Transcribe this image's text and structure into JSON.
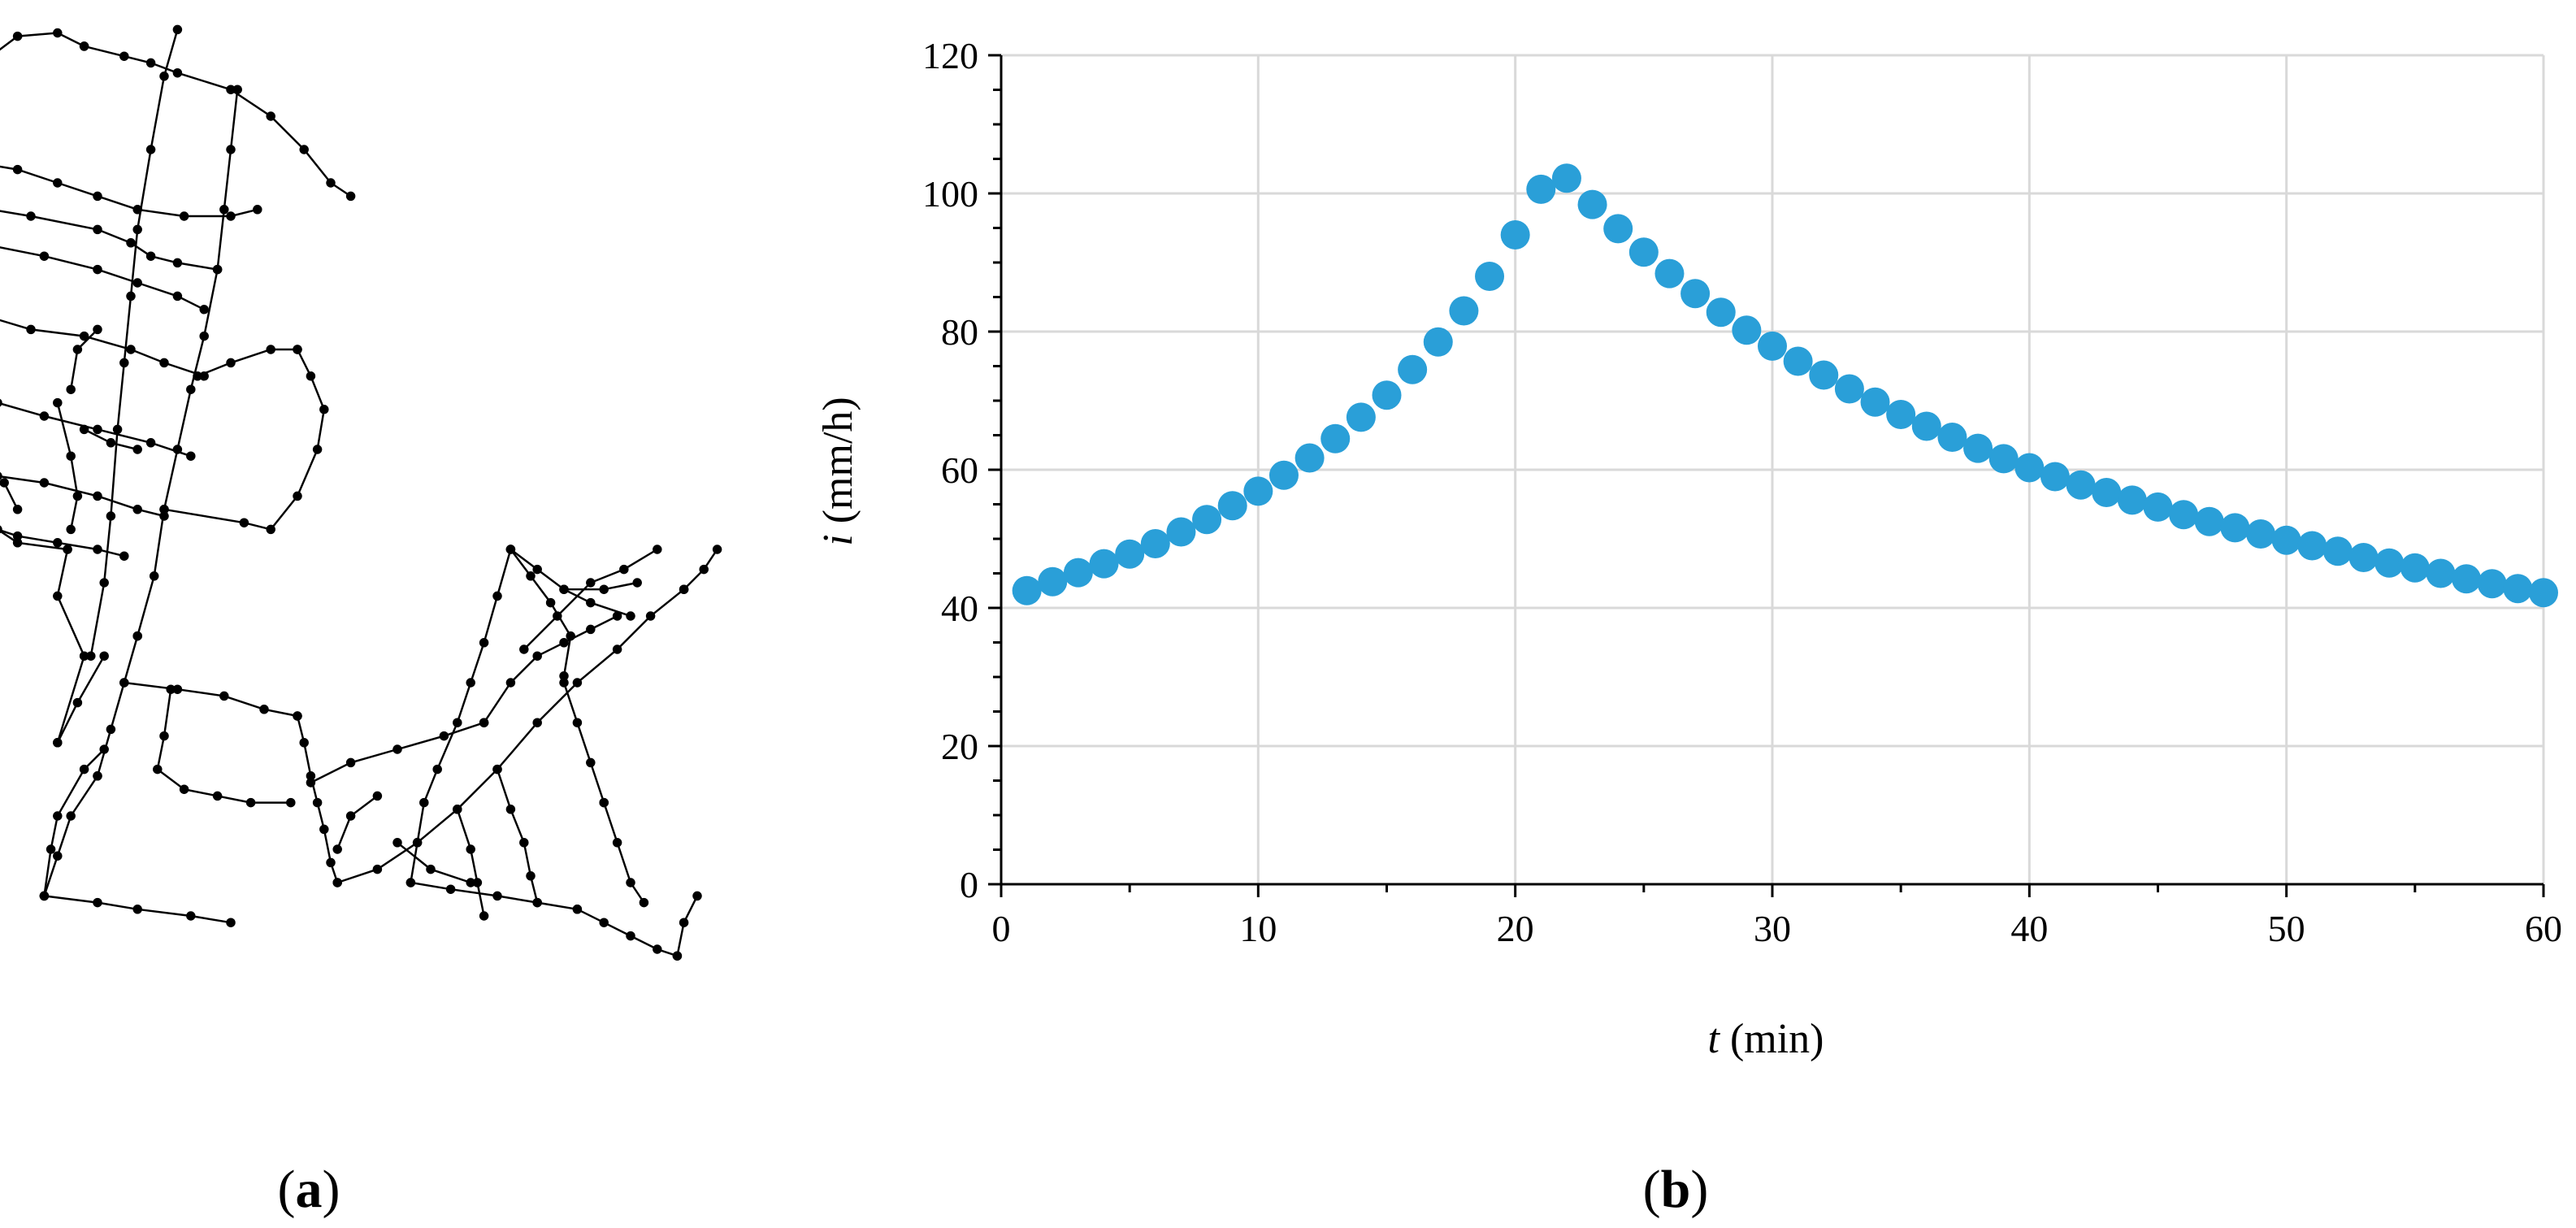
{
  "panels": {
    "a": {
      "label": "a"
    },
    "b": {
      "label": "b"
    }
  },
  "network": {
    "node_color": "#000000",
    "polylines": [
      [
        [
          120,
          20
        ],
        [
          100,
          90
        ],
        [
          80,
          200
        ],
        [
          60,
          320
        ],
        [
          50,
          420
        ],
        [
          40,
          520
        ],
        [
          30,
          620
        ],
        [
          20,
          750
        ],
        [
          10,
          850
        ],
        [
          -10,
          960
        ]
      ],
      [
        [
          10,
          960
        ],
        [
          -30,
          1030
        ],
        [
          -60,
          1090
        ]
      ],
      [
        [
          -60,
          1090
        ],
        [
          -20,
          960
        ],
        [
          -60,
          870
        ],
        [
          -45,
          800
        ]
      ],
      [
        [
          -45,
          800
        ],
        [
          -120,
          790
        ],
        [
          -150,
          770
        ],
        [
          -200,
          760
        ]
      ],
      [
        [
          -200,
          760
        ],
        [
          -230,
          700
        ],
        [
          -250,
          640
        ],
        [
          -260,
          560
        ],
        [
          -250,
          480
        ],
        [
          -260,
          420
        ],
        [
          -250,
          340
        ],
        [
          -270,
          280
        ],
        [
          -280,
          220
        ],
        [
          -240,
          160
        ],
        [
          -200,
          110
        ],
        [
          -160,
          60
        ],
        [
          -120,
          30
        ],
        [
          -60,
          25
        ],
        [
          -20,
          45
        ]
      ],
      [
        [
          -250,
          210
        ],
        [
          -180,
          220
        ],
        [
          -120,
          230
        ],
        [
          -60,
          250
        ],
        [
          0,
          270
        ],
        [
          60,
          290
        ],
        [
          130,
          300
        ],
        [
          200,
          300
        ],
        [
          240,
          290
        ]
      ],
      [
        [
          -20,
          45
        ],
        [
          40,
          60
        ],
        [
          80,
          70
        ],
        [
          120,
          85
        ],
        [
          200,
          110
        ],
        [
          260,
          150
        ],
        [
          310,
          200
        ],
        [
          350,
          250
        ],
        [
          380,
          270
        ]
      ],
      [
        [
          210,
          110
        ],
        [
          200,
          200
        ],
        [
          190,
          290
        ],
        [
          180,
          380
        ],
        [
          160,
          480
        ],
        [
          140,
          560
        ],
        [
          120,
          650
        ],
        [
          100,
          740
        ],
        [
          85,
          840
        ],
        [
          60,
          930
        ]
      ],
      [
        [
          -220,
          280
        ],
        [
          -100,
          300
        ],
        [
          0,
          320
        ],
        [
          50,
          340
        ],
        [
          80,
          360
        ],
        [
          120,
          370
        ],
        [
          180,
          380
        ]
      ],
      [
        [
          -180,
          340
        ],
        [
          -80,
          360
        ],
        [
          0,
          380
        ],
        [
          60,
          400
        ],
        [
          120,
          420
        ],
        [
          160,
          440
        ]
      ],
      [
        [
          -200,
          440
        ],
        [
          -100,
          470
        ],
        [
          -20,
          480
        ],
        [
          50,
          500
        ],
        [
          100,
          520
        ],
        [
          160,
          540
        ]
      ],
      [
        [
          -230,
          560
        ],
        [
          -150,
          580
        ],
        [
          -80,
          600
        ],
        [
          0,
          620
        ],
        [
          80,
          640
        ],
        [
          140,
          660
        ]
      ],
      [
        [
          -240,
          660
        ],
        [
          -150,
          690
        ],
        [
          -80,
          700
        ],
        [
          0,
          720
        ],
        [
          60,
          740
        ],
        [
          100,
          750
        ]
      ],
      [
        [
          -240,
          740
        ],
        [
          -180,
          760
        ],
        [
          -120,
          780
        ],
        [
          -60,
          790
        ],
        [
          0,
          800
        ],
        [
          40,
          810
        ]
      ],
      [
        [
          100,
          740
        ],
        [
          220,
          760
        ],
        [
          260,
          770
        ],
        [
          300,
          720
        ],
        [
          330,
          650
        ],
        [
          340,
          590
        ],
        [
          320,
          540
        ],
        [
          300,
          500
        ]
      ],
      [
        [
          150,
          540
        ],
        [
          200,
          520
        ],
        [
          260,
          500
        ],
        [
          300,
          500
        ]
      ],
      [
        [
          -60,
          580
        ],
        [
          -40,
          660
        ],
        [
          -30,
          720
        ],
        [
          -40,
          770
        ]
      ],
      [
        [
          -20,
          620
        ],
        [
          20,
          640
        ],
        [
          60,
          650
        ]
      ],
      [
        [
          -140,
          700
        ],
        [
          -120,
          740
        ]
      ],
      [
        [
          0,
          470
        ],
        [
          -30,
          500
        ],
        [
          -40,
          560
        ]
      ],
      [
        [
          60,
          930
        ],
        [
          40,
          1000
        ],
        [
          20,
          1070
        ],
        [
          0,
          1140
        ]
      ],
      [
        [
          0,
          1140
        ],
        [
          -40,
          1200
        ],
        [
          -60,
          1260
        ],
        [
          -80,
          1320
        ]
      ],
      [
        [
          -80,
          1320
        ],
        [
          0,
          1330
        ],
        [
          60,
          1340
        ],
        [
          140,
          1350
        ],
        [
          200,
          1360
        ]
      ],
      [
        [
          -80,
          1320
        ],
        [
          -70,
          1250
        ],
        [
          -60,
          1200
        ],
        [
          -20,
          1130
        ],
        [
          10,
          1100
        ]
      ],
      [
        [
          40,
          1000
        ],
        [
          120,
          1010
        ],
        [
          190,
          1020
        ],
        [
          250,
          1040
        ],
        [
          300,
          1050
        ]
      ],
      [
        [
          300,
          1050
        ],
        [
          310,
          1090
        ],
        [
          320,
          1140
        ],
        [
          330,
          1180
        ],
        [
          340,
          1220
        ],
        [
          350,
          1270
        ],
        [
          360,
          1300
        ]
      ],
      [
        [
          110,
          1010
        ],
        [
          100,
          1080
        ],
        [
          90,
          1130
        ],
        [
          130,
          1160
        ],
        [
          180,
          1170
        ],
        [
          230,
          1180
        ],
        [
          290,
          1180
        ]
      ],
      [
        [
          320,
          1150
        ],
        [
          380,
          1120
        ],
        [
          450,
          1100
        ],
        [
          520,
          1080
        ],
        [
          580,
          1060
        ]
      ],
      [
        [
          360,
          1300
        ],
        [
          420,
          1280
        ],
        [
          480,
          1240
        ],
        [
          540,
          1190
        ],
        [
          600,
          1130
        ],
        [
          660,
          1060
        ],
        [
          720,
          1000
        ],
        [
          780,
          950
        ],
        [
          830,
          900
        ],
        [
          880,
          860
        ]
      ],
      [
        [
          880,
          860
        ],
        [
          910,
          830
        ],
        [
          930,
          800
        ]
      ],
      [
        [
          700,
          990
        ],
        [
          710,
          930
        ],
        [
          680,
          880
        ],
        [
          650,
          840
        ],
        [
          620,
          800
        ]
      ],
      [
        [
          620,
          800
        ],
        [
          660,
          830
        ],
        [
          700,
          860
        ],
        [
          740,
          880
        ],
        [
          800,
          900
        ]
      ],
      [
        [
          620,
          800
        ],
        [
          600,
          870
        ],
        [
          580,
          940
        ],
        [
          560,
          1000
        ],
        [
          540,
          1060
        ],
        [
          510,
          1130
        ],
        [
          490,
          1180
        ],
        [
          480,
          1240
        ],
        [
          470,
          1300
        ]
      ],
      [
        [
          470,
          1300
        ],
        [
          530,
          1310
        ],
        [
          600,
          1320
        ],
        [
          660,
          1330
        ],
        [
          720,
          1340
        ]
      ],
      [
        [
          720,
          1340
        ],
        [
          760,
          1360
        ],
        [
          800,
          1380
        ],
        [
          840,
          1400
        ],
        [
          870,
          1410
        ]
      ],
      [
        [
          870,
          1410
        ],
        [
          880,
          1360
        ],
        [
          900,
          1320
        ]
      ],
      [
        [
          600,
          1130
        ],
        [
          620,
          1190
        ],
        [
          640,
          1240
        ],
        [
          650,
          1290
        ],
        [
          660,
          1330
        ]
      ],
      [
        [
          540,
          1190
        ],
        [
          560,
          1250
        ],
        [
          570,
          1300
        ],
        [
          580,
          1350
        ]
      ],
      [
        [
          450,
          1240
        ],
        [
          500,
          1280
        ],
        [
          560,
          1300
        ]
      ],
      [
        [
          580,
          1060
        ],
        [
          620,
          1000
        ],
        [
          660,
          960
        ],
        [
          700,
          940
        ],
        [
          740,
          920
        ],
        [
          780,
          900
        ]
      ],
      [
        [
          700,
          1000
        ],
        [
          720,
          1060
        ],
        [
          740,
          1120
        ],
        [
          760,
          1180
        ]
      ],
      [
        [
          760,
          1180
        ],
        [
          780,
          1240
        ],
        [
          800,
          1300
        ],
        [
          820,
          1330
        ]
      ],
      [
        [
          420,
          1170
        ],
        [
          380,
          1200
        ],
        [
          360,
          1250
        ]
      ],
      [
        [
          640,
          950
        ],
        [
          690,
          900
        ],
        [
          740,
          850
        ],
        [
          790,
          830
        ],
        [
          840,
          800
        ]
      ],
      [
        [
          700,
          860
        ],
        [
          760,
          860
        ],
        [
          810,
          850
        ]
      ]
    ]
  },
  "chart_data": {
    "type": "scatter",
    "xlabel": {
      "var": "t",
      "unit": " (min)"
    },
    "ylabel": {
      "var": "i",
      "unit": " (mm/h)"
    },
    "xlim": [
      0,
      60
    ],
    "ylim": [
      0,
      120
    ],
    "x_ticks": [
      0,
      10,
      20,
      30,
      40,
      50,
      60
    ],
    "y_ticks": [
      0,
      20,
      40,
      60,
      80,
      100,
      120
    ],
    "grid": true,
    "marker_color": "#2a9fd8",
    "gridline_color": "#d9d9d9",
    "series": [
      {
        "x": [
          1,
          2,
          3,
          4,
          5,
          6,
          7,
          8,
          9,
          10,
          11,
          12,
          13,
          14,
          15,
          16,
          17,
          18,
          19,
          20,
          21,
          22,
          23,
          24,
          25,
          26,
          27,
          28,
          29,
          30,
          31,
          32,
          33,
          34,
          35,
          36,
          37,
          38,
          39,
          40,
          41,
          42,
          43,
          44,
          45,
          46,
          47,
          48,
          49,
          50,
          51,
          52,
          53,
          54,
          55,
          56,
          57,
          58,
          59,
          60
        ],
        "y": [
          42.5,
          43.8,
          45.1,
          46.4,
          47.8,
          49.3,
          51.0,
          52.8,
          54.8,
          56.9,
          59.2,
          61.7,
          64.5,
          67.6,
          70.8,
          74.5,
          78.5,
          83.0,
          88.0,
          94.0,
          100.6,
          102.2,
          98.4,
          94.9,
          91.5,
          88.4,
          85.5,
          82.8,
          80.2,
          77.9,
          75.7,
          73.7,
          71.7,
          69.8,
          68.0,
          66.3,
          64.7,
          63.1,
          61.6,
          60.3,
          59.0,
          57.8,
          56.7,
          55.6,
          54.6,
          53.5,
          52.5,
          51.6,
          50.7,
          49.8,
          49.0,
          48.2,
          47.3,
          46.5,
          45.8,
          45.0,
          44.2,
          43.5,
          42.8,
          42.2
        ]
      }
    ]
  }
}
